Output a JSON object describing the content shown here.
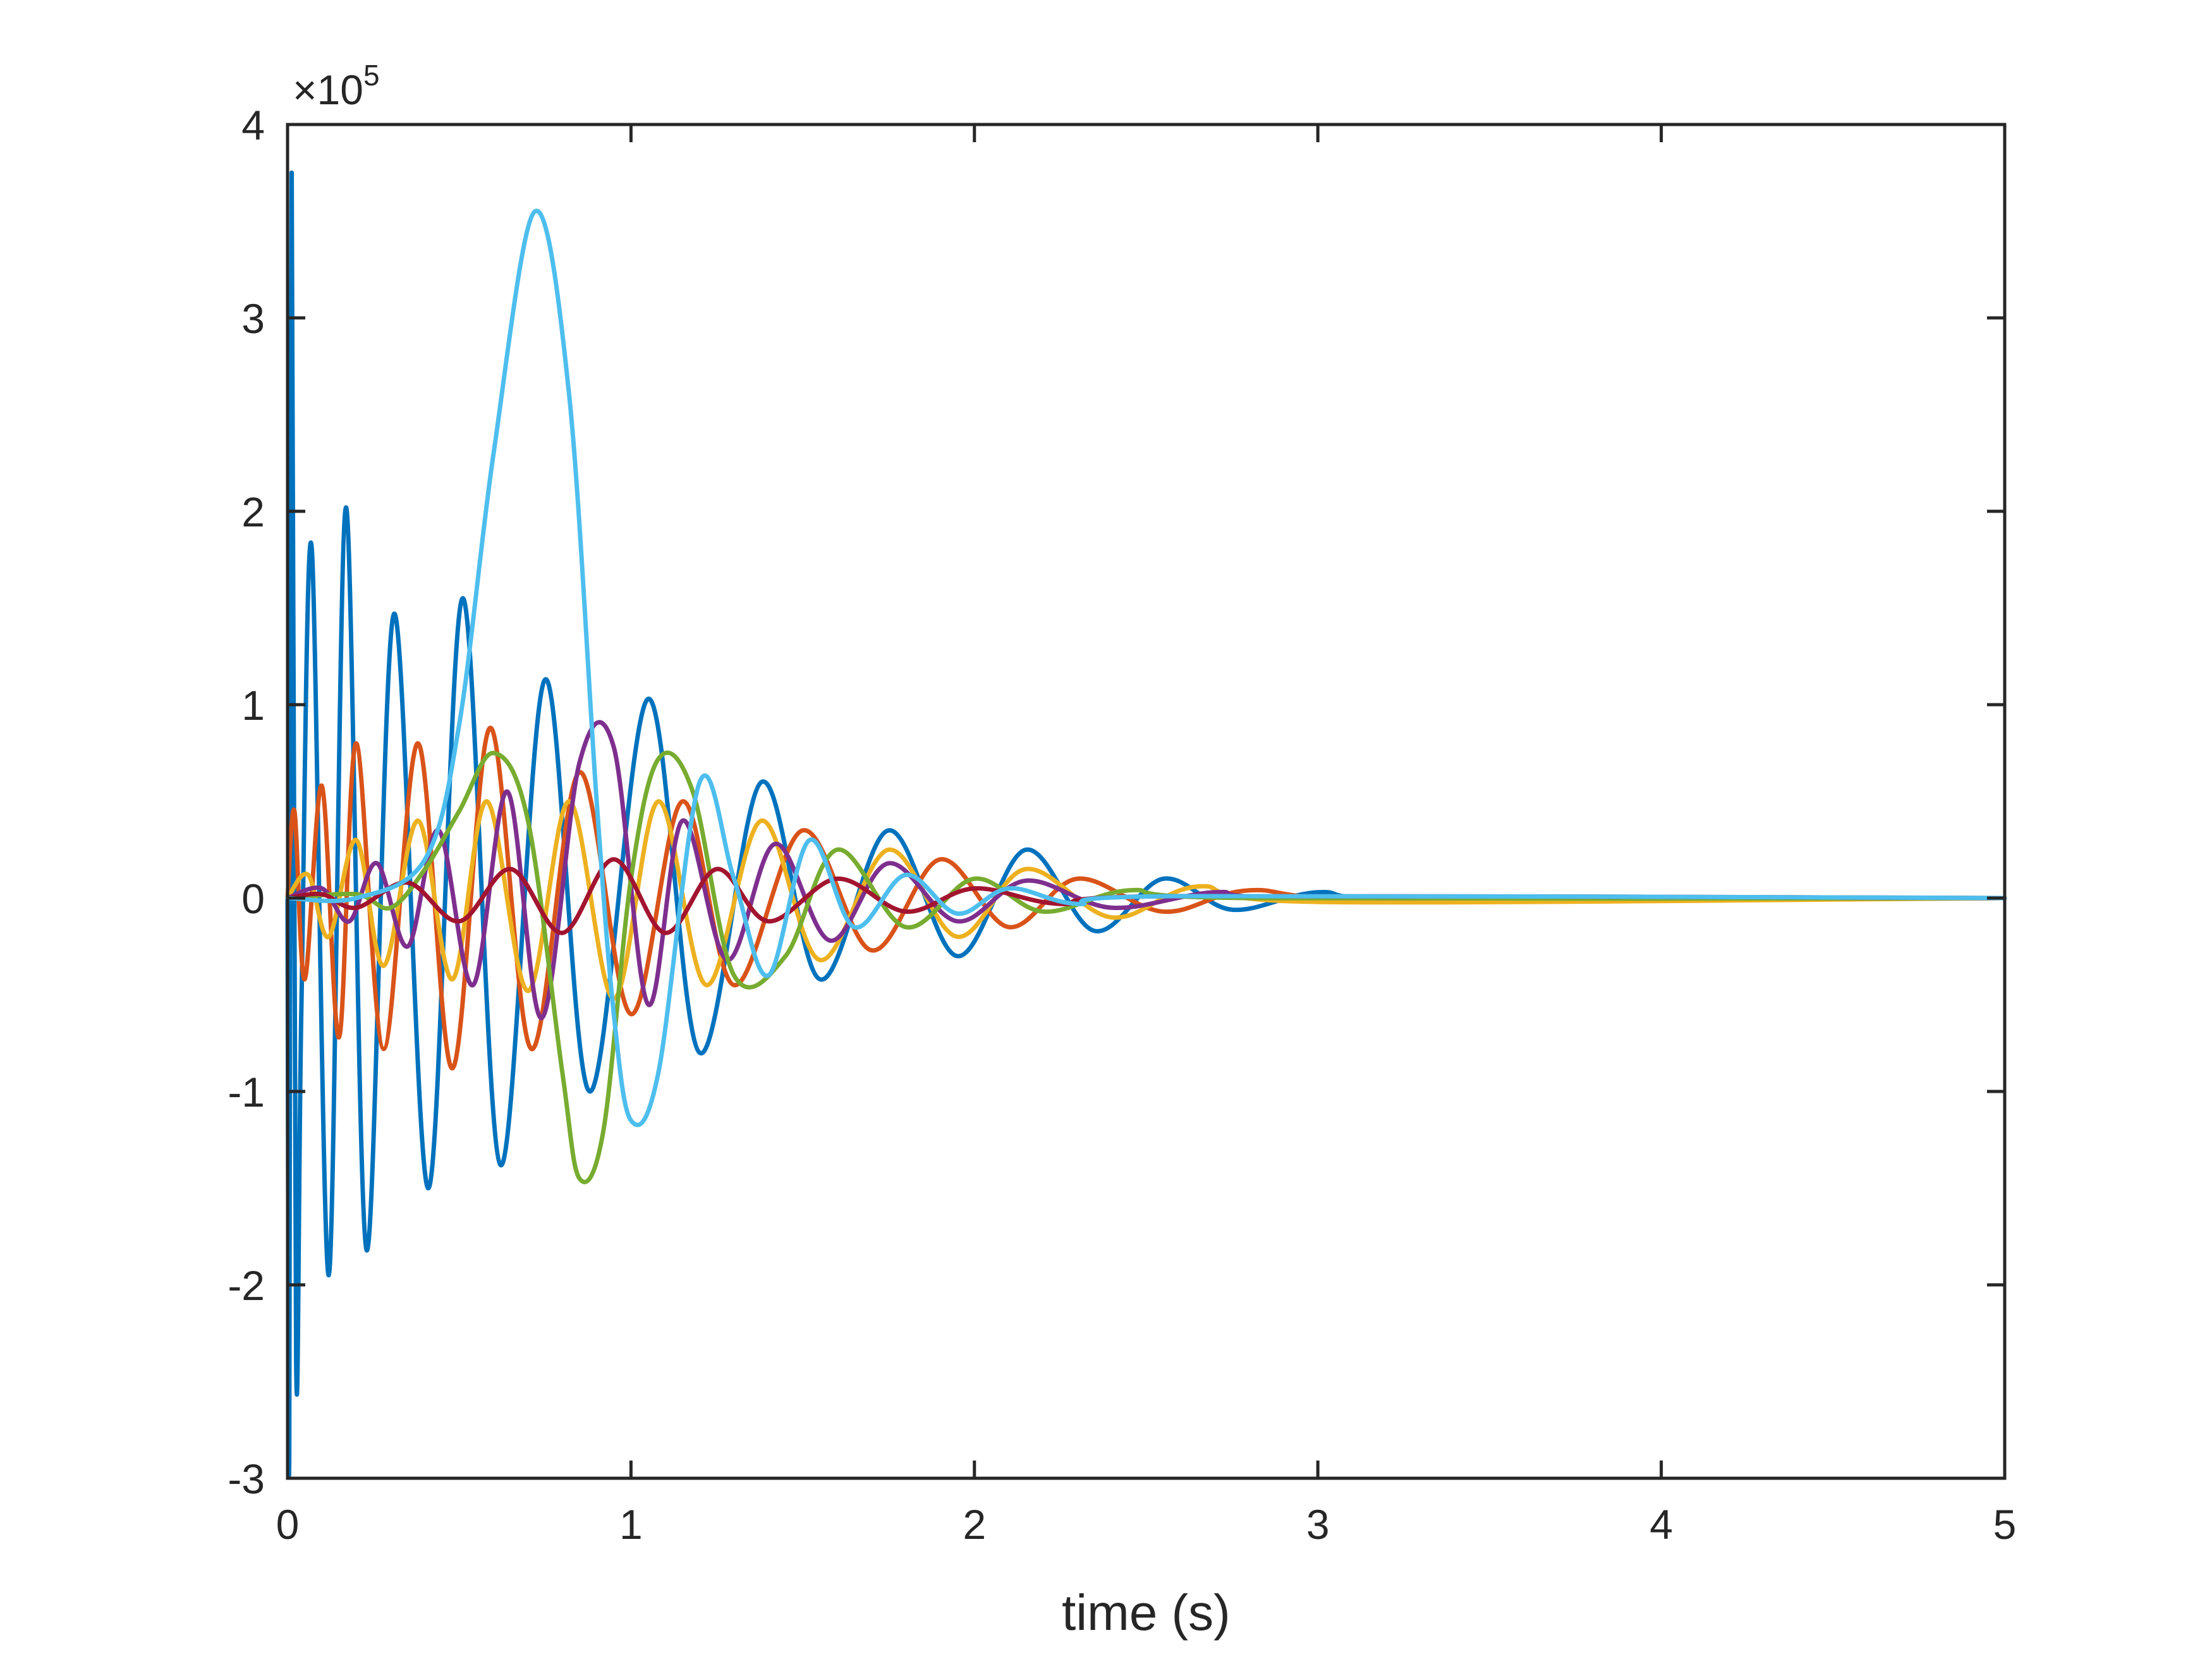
{
  "chart_data": {
    "type": "line",
    "title": "",
    "xlabel": "time (s)",
    "ylabel": "",
    "xlim": [
      0,
      5
    ],
    "ylim": [
      -3,
      4
    ],
    "xticks": [
      0,
      1,
      2,
      3,
      4,
      5
    ],
    "yticks": [
      -3,
      -2,
      -1,
      0,
      1,
      2,
      3,
      4
    ],
    "xtick_labels": [
      "0",
      "1",
      "2",
      "3",
      "4",
      "5"
    ],
    "ytick_labels": [
      "-3",
      "-2",
      "-1",
      "0",
      "1",
      "2",
      "3",
      "4"
    ],
    "y_exponent_label": "×10",
    "y_exponent_power": "5",
    "y_scale_factor": 100000,
    "grid": false,
    "legend": "none",
    "series": [
      {
        "color": "#0072BD",
        "points": [
          [
            0,
            0
          ],
          [
            0.005,
            -2.9
          ],
          [
            0.012,
            3.75
          ],
          [
            0.025,
            -2.4
          ],
          [
            0.04,
            -0.6
          ],
          [
            0.07,
            1.82
          ],
          [
            0.12,
            -1.95
          ],
          [
            0.17,
            2.02
          ],
          [
            0.23,
            -1.82
          ],
          [
            0.31,
            1.47
          ],
          [
            0.41,
            -1.5
          ],
          [
            0.51,
            1.55
          ],
          [
            0.62,
            -1.38
          ],
          [
            0.75,
            1.13
          ],
          [
            0.88,
            -1.0
          ],
          [
            1.05,
            1.03
          ],
          [
            1.2,
            -0.8
          ],
          [
            1.38,
            0.6
          ],
          [
            1.55,
            -0.42
          ],
          [
            1.75,
            0.35
          ],
          [
            1.95,
            -0.3
          ],
          [
            2.15,
            0.25
          ],
          [
            2.35,
            -0.17
          ],
          [
            2.55,
            0.1
          ],
          [
            2.75,
            -0.06
          ],
          [
            3.0,
            0.03
          ],
          [
            3.3,
            -0.01
          ],
          [
            5.0,
            0
          ]
        ]
      },
      {
        "color": "#D95319",
        "points": [
          [
            0,
            0
          ],
          [
            0.02,
            0.45
          ],
          [
            0.05,
            -0.42
          ],
          [
            0.1,
            0.58
          ],
          [
            0.15,
            -0.72
          ],
          [
            0.2,
            0.8
          ],
          [
            0.28,
            -0.78
          ],
          [
            0.38,
            0.8
          ],
          [
            0.48,
            -0.88
          ],
          [
            0.59,
            0.88
          ],
          [
            0.71,
            -0.78
          ],
          [
            0.85,
            0.65
          ],
          [
            1.0,
            -0.6
          ],
          [
            1.15,
            0.5
          ],
          [
            1.3,
            -0.45
          ],
          [
            1.5,
            0.35
          ],
          [
            1.7,
            -0.27
          ],
          [
            1.9,
            0.2
          ],
          [
            2.1,
            -0.15
          ],
          [
            2.3,
            0.1
          ],
          [
            2.55,
            -0.07
          ],
          [
            2.8,
            0.04
          ],
          [
            3.2,
            -0.01
          ],
          [
            5.0,
            0
          ]
        ]
      },
      {
        "color": "#EDB120",
        "points": [
          [
            0,
            0
          ],
          [
            0.06,
            0.12
          ],
          [
            0.12,
            -0.2
          ],
          [
            0.2,
            0.3
          ],
          [
            0.28,
            -0.35
          ],
          [
            0.38,
            0.4
          ],
          [
            0.48,
            -0.42
          ],
          [
            0.58,
            0.5
          ],
          [
            0.7,
            -0.48
          ],
          [
            0.82,
            0.5
          ],
          [
            0.95,
            -0.52
          ],
          [
            1.08,
            0.5
          ],
          [
            1.22,
            -0.45
          ],
          [
            1.38,
            0.4
          ],
          [
            1.55,
            -0.32
          ],
          [
            1.75,
            0.25
          ],
          [
            1.95,
            -0.2
          ],
          [
            2.15,
            0.15
          ],
          [
            2.4,
            -0.1
          ],
          [
            2.65,
            0.06
          ],
          [
            3.0,
            -0.02
          ],
          [
            5.0,
            0
          ]
        ]
      },
      {
        "color": "#7E2F8E",
        "points": [
          [
            0,
            0
          ],
          [
            0.1,
            0.05
          ],
          [
            0.18,
            -0.12
          ],
          [
            0.26,
            0.18
          ],
          [
            0.35,
            -0.25
          ],
          [
            0.44,
            0.35
          ],
          [
            0.54,
            -0.45
          ],
          [
            0.64,
            0.55
          ],
          [
            0.74,
            -0.62
          ],
          [
            0.85,
            0.7
          ],
          [
            0.95,
            0.78
          ],
          [
            1.05,
            -0.55
          ],
          [
            1.15,
            0.4
          ],
          [
            1.28,
            -0.32
          ],
          [
            1.42,
            0.28
          ],
          [
            1.58,
            -0.22
          ],
          [
            1.75,
            0.18
          ],
          [
            1.95,
            -0.12
          ],
          [
            2.15,
            0.09
          ],
          [
            2.4,
            -0.05
          ],
          [
            2.7,
            0.03
          ],
          [
            3.0,
            0
          ],
          [
            5.0,
            0
          ]
        ]
      },
      {
        "color": "#77AC30",
        "points": [
          [
            0,
            0
          ],
          [
            0.2,
            0.02
          ],
          [
            0.3,
            -0.05
          ],
          [
            0.4,
            0.15
          ],
          [
            0.5,
            0.45
          ],
          [
            0.6,
            0.75
          ],
          [
            0.7,
            0.4
          ],
          [
            0.8,
            -0.9
          ],
          [
            0.85,
            -1.45
          ],
          [
            0.92,
            -1.2
          ],
          [
            1.0,
            0.1
          ],
          [
            1.08,
            0.72
          ],
          [
            1.18,
            0.55
          ],
          [
            1.3,
            -0.4
          ],
          [
            1.45,
            -0.3
          ],
          [
            1.6,
            0.25
          ],
          [
            1.8,
            -0.15
          ],
          [
            2.0,
            0.1
          ],
          [
            2.2,
            -0.07
          ],
          [
            2.45,
            0.04
          ],
          [
            2.8,
            0
          ],
          [
            5.0,
            0
          ]
        ]
      },
      {
        "color": "#A2142F",
        "points": [
          [
            0,
            0
          ],
          [
            0.1,
            0.02
          ],
          [
            0.2,
            -0.05
          ],
          [
            0.35,
            0.08
          ],
          [
            0.5,
            -0.12
          ],
          [
            0.65,
            0.15
          ],
          [
            0.8,
            -0.18
          ],
          [
            0.95,
            0.2
          ],
          [
            1.1,
            -0.18
          ],
          [
            1.25,
            0.15
          ],
          [
            1.4,
            -0.12
          ],
          [
            1.6,
            0.1
          ],
          [
            1.8,
            -0.07
          ],
          [
            2.0,
            0.05
          ],
          [
            2.25,
            -0.03
          ],
          [
            2.6,
            0.01
          ],
          [
            5.0,
            0
          ]
        ]
      },
      {
        "color": "#4DBEEE",
        "points": [
          [
            0,
            0
          ],
          [
            0.2,
            0.0
          ],
          [
            0.4,
            0.2
          ],
          [
            0.5,
            0.9
          ],
          [
            0.6,
            2.3
          ],
          [
            0.72,
            3.55
          ],
          [
            0.82,
            2.6
          ],
          [
            0.9,
            0.5
          ],
          [
            0.95,
            -0.6
          ],
          [
            1.0,
            -1.15
          ],
          [
            1.08,
            -0.9
          ],
          [
            1.2,
            0.6
          ],
          [
            1.3,
            0.1
          ],
          [
            1.4,
            -0.4
          ],
          [
            1.52,
            0.3
          ],
          [
            1.65,
            -0.15
          ],
          [
            1.8,
            0.12
          ],
          [
            1.95,
            -0.08
          ],
          [
            2.1,
            0.05
          ],
          [
            2.3,
            -0.03
          ],
          [
            2.6,
            0.01
          ],
          [
            5.0,
            0
          ]
        ]
      }
    ]
  }
}
